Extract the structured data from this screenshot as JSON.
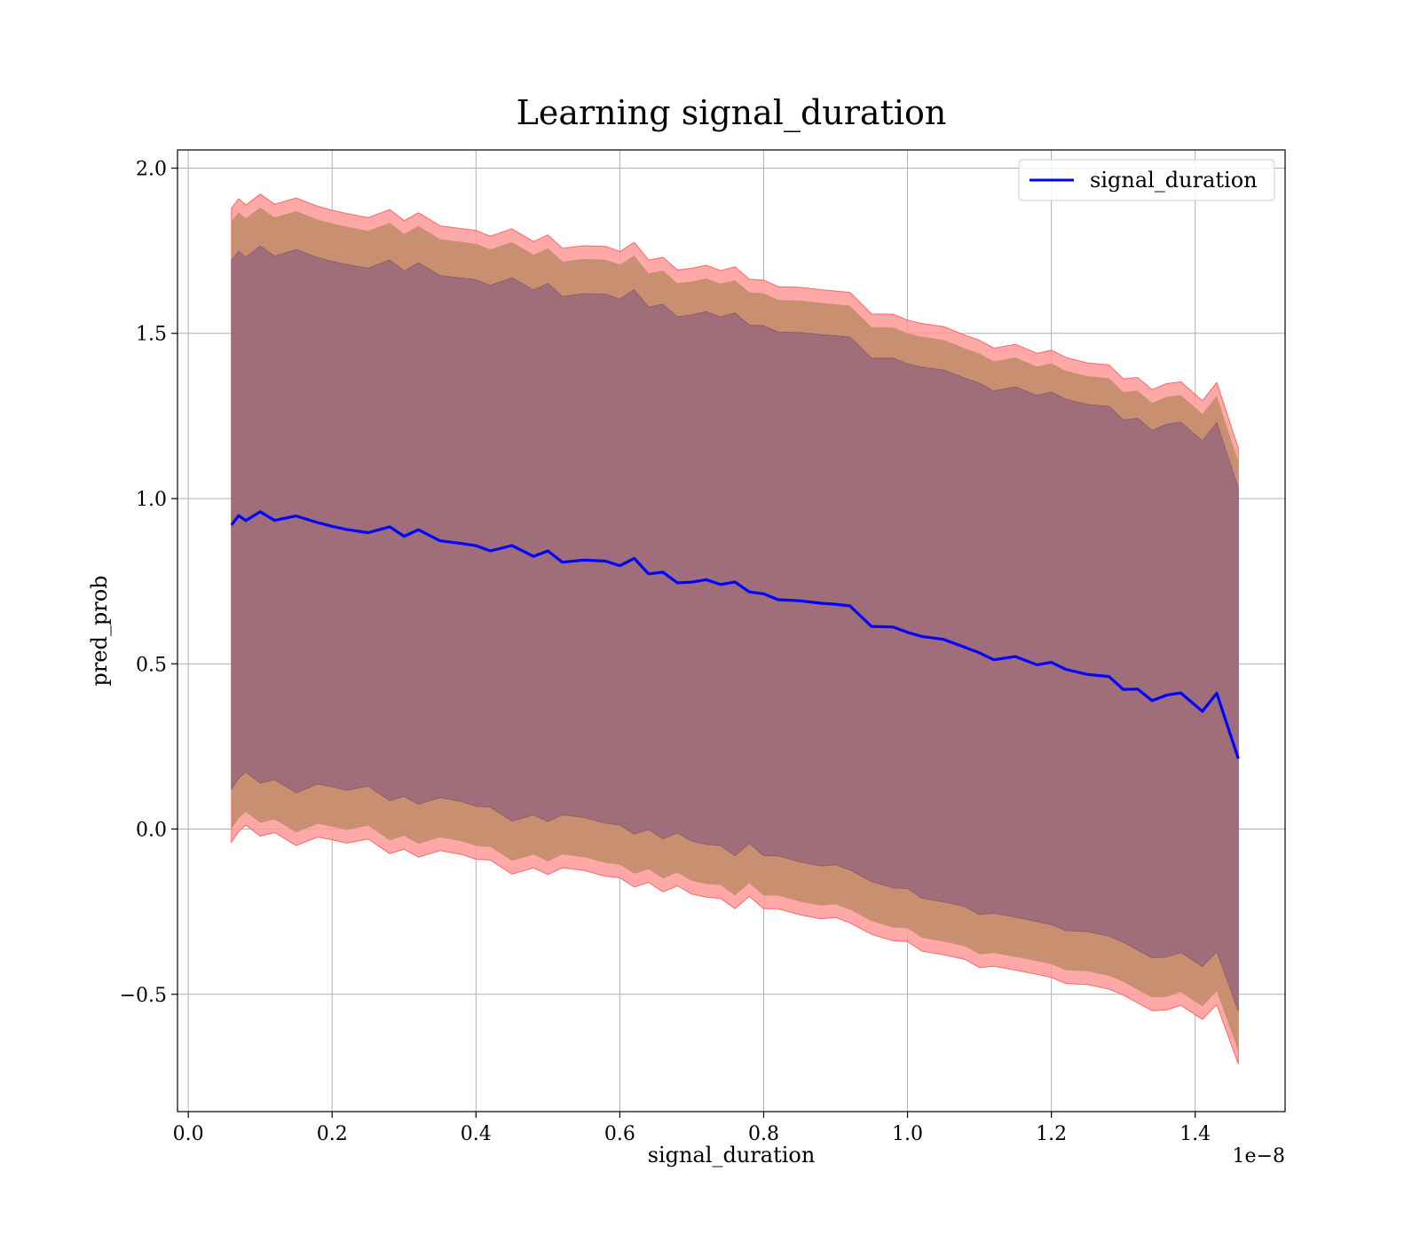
{
  "chart_data": {
    "type": "line",
    "title": "Learning signal_duration",
    "xlabel": "signal_duration",
    "ylabel": "pred_prob",
    "x_offset_label": "1e−8",
    "xlim": [
      -0.015,
      1.525
    ],
    "ylim": [
      -0.855,
      2.055
    ],
    "xticks": [
      0.0,
      0.2,
      0.4,
      0.6,
      0.8,
      1.0,
      1.2,
      1.4
    ],
    "xtick_labels": [
      "0.0",
      "0.2",
      "0.4",
      "0.6",
      "0.8",
      "1.0",
      "1.2",
      "1.4"
    ],
    "yticks": [
      -0.5,
      0.0,
      0.5,
      1.0,
      1.5,
      2.0
    ],
    "ytick_labels": [
      "−0.5",
      "0.0",
      "0.5",
      "1.0",
      "1.5",
      "2.0"
    ],
    "grid": true,
    "legend_position": "top-right",
    "colors": {
      "line": "#0000ff",
      "band_outer": "#ff9999",
      "band_mid": "#c89070",
      "band_inner": "#9f6e7a",
      "band_edge": "#ff6666"
    },
    "series": [
      {
        "name": "signal_duration",
        "x": [
          0.06,
          0.07,
          0.08,
          0.1,
          0.12,
          0.15,
          0.18,
          0.2,
          0.22,
          0.25,
          0.28,
          0.3,
          0.32,
          0.35,
          0.38,
          0.4,
          0.42,
          0.45,
          0.48,
          0.5,
          0.52,
          0.55,
          0.58,
          0.6,
          0.62,
          0.64,
          0.66,
          0.68,
          0.7,
          0.72,
          0.74,
          0.76,
          0.78,
          0.8,
          0.82,
          0.85,
          0.88,
          0.9,
          0.92,
          0.95,
          0.98,
          1.0,
          1.02,
          1.05,
          1.08,
          1.1,
          1.12,
          1.15,
          1.18,
          1.2,
          1.22,
          1.25,
          1.28,
          1.3,
          1.32,
          1.34,
          1.36,
          1.38,
          1.41,
          1.43,
          1.46
        ],
        "y": [
          0.92,
          0.95,
          0.95,
          0.95,
          0.94,
          0.93,
          0.93,
          0.92,
          0.91,
          0.91,
          0.9,
          0.89,
          0.89,
          0.88,
          0.87,
          0.86,
          0.85,
          0.84,
          0.83,
          0.83,
          0.82,
          0.82,
          0.81,
          0.8,
          0.8,
          0.78,
          0.77,
          0.76,
          0.75,
          0.75,
          0.74,
          0.73,
          0.73,
          0.71,
          0.7,
          0.69,
          0.68,
          0.68,
          0.67,
          0.62,
          0.61,
          0.6,
          0.58,
          0.57,
          0.55,
          0.53,
          0.52,
          0.52,
          0.5,
          0.5,
          0.48,
          0.47,
          0.46,
          0.43,
          0.42,
          0.39,
          0.4,
          0.41,
          0.36,
          0.41,
          0.22
        ]
      }
    ]
  }
}
